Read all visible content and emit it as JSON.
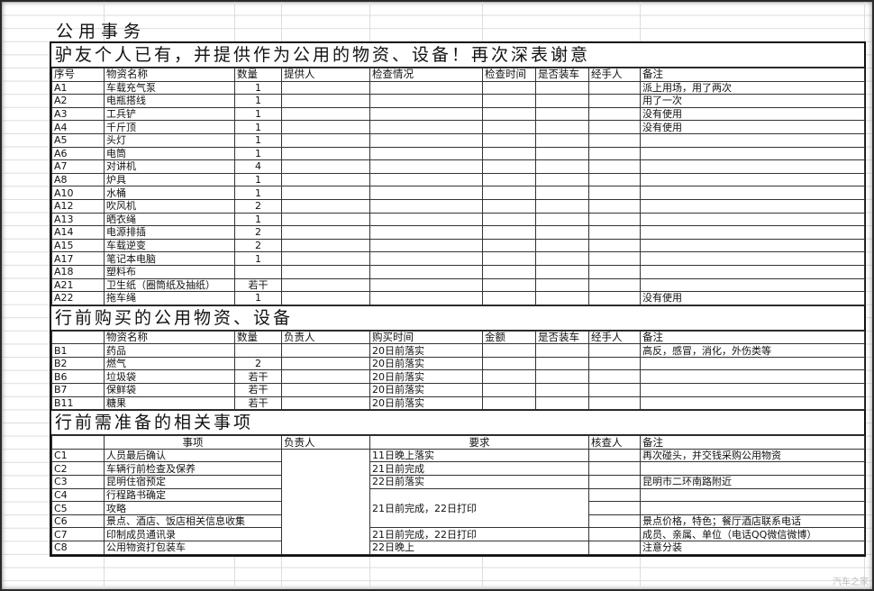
{
  "sheet_title": "公用事务",
  "section_a": {
    "banner": "驴友个人已有，并提供作为公用的物资、设备！再次深表谢意",
    "headers": [
      "序号",
      "物资名称",
      "数量",
      "提供人",
      "检查情况",
      "检查时间",
      "是否装车",
      "经手人",
      "备注"
    ],
    "rows": [
      [
        "A1",
        "车载充气泵",
        "1",
        "",
        "",
        "",
        "",
        "",
        "派上用场，用了两次"
      ],
      [
        "A2",
        "电瓶搭线",
        "1",
        "",
        "",
        "",
        "",
        "",
        "用了一次"
      ],
      [
        "A3",
        "工兵铲",
        "1",
        "",
        "",
        "",
        "",
        "",
        "没有使用"
      ],
      [
        "A4",
        "千斤顶",
        "1",
        "",
        "",
        "",
        "",
        "",
        "没有使用"
      ],
      [
        "A5",
        "头灯",
        "1",
        "",
        "",
        "",
        "",
        "",
        ""
      ],
      [
        "A6",
        "电筒",
        "1",
        "",
        "",
        "",
        "",
        "",
        ""
      ],
      [
        "A7",
        "对讲机",
        "4",
        "",
        "",
        "",
        "",
        "",
        ""
      ],
      [
        "A8",
        "炉具",
        "1",
        "",
        "",
        "",
        "",
        "",
        ""
      ],
      [
        "A10",
        "水桶",
        "1",
        "",
        "",
        "",
        "",
        "",
        ""
      ],
      [
        "A12",
        "吹风机",
        "2",
        "",
        "",
        "",
        "",
        "",
        ""
      ],
      [
        "A13",
        "晒衣绳",
        "1",
        "",
        "",
        "",
        "",
        "",
        ""
      ],
      [
        "A14",
        "电源排插",
        "2",
        "",
        "",
        "",
        "",
        "",
        ""
      ],
      [
        "A15",
        "车载逆变",
        "2",
        "",
        "",
        "",
        "",
        "",
        ""
      ],
      [
        "A17",
        "笔记本电脑",
        "1",
        "",
        "",
        "",
        "",
        "",
        ""
      ],
      [
        "A18",
        "塑料布",
        "",
        "",
        "",
        "",
        "",
        "",
        ""
      ],
      [
        "A21",
        "卫生纸（圈筒纸及抽纸）",
        "若干",
        "",
        "",
        "",
        "",
        "",
        ""
      ],
      [
        "A22",
        "拖车绳",
        "1",
        "",
        "",
        "",
        "",
        "",
        "没有使用"
      ]
    ]
  },
  "section_b": {
    "banner": "行前购买的公用物资、设备",
    "headers": [
      "",
      "物资名称",
      "数量",
      "负责人",
      "购买时间",
      "金额",
      "是否装车",
      "经手人",
      "备注"
    ],
    "rows": [
      [
        "B1",
        "药品",
        "",
        "",
        "20日前落实",
        "",
        "",
        "",
        "高反，感冒，消化，外伤类等"
      ],
      [
        "B2",
        "燃气",
        "2",
        "",
        "20日前落实",
        "",
        "",
        "",
        ""
      ],
      [
        "B6",
        "垃圾袋",
        "若干",
        "",
        "20日前落实",
        "",
        "",
        "",
        ""
      ],
      [
        "B7",
        "保鲜袋",
        "若干",
        "",
        "20日前落实",
        "",
        "",
        "",
        ""
      ],
      [
        "B11",
        "糖果",
        "若干",
        "",
        "20日前落实",
        "",
        "",
        "",
        ""
      ]
    ]
  },
  "section_c": {
    "banner": "行前需准备的相关事项",
    "headers": [
      "",
      "事项",
      "负责人",
      "要求",
      "核查人",
      "备注"
    ],
    "rows": [
      [
        "C1",
        "人员最后确认",
        "",
        "11日晚上落实",
        "",
        "再次碰头，并交钱采购公用物资"
      ],
      [
        "C2",
        "车辆行前检查及保养",
        "",
        "21日前完成",
        "",
        ""
      ],
      [
        "C3",
        "昆明住宿预定",
        "",
        "22日前落实",
        "",
        "昆明市二环南路附近"
      ],
      [
        "C4",
        "行程路书确定",
        "",
        "21日前完成，22日打印",
        "",
        ""
      ],
      [
        "C5",
        "攻略",
        "",
        "",
        "",
        ""
      ],
      [
        "C6",
        "景点、酒店、饭店相关信息收集",
        "",
        "",
        "",
        "景点价格，特色；餐厅酒店联系电话"
      ],
      [
        "C7",
        "印制成员通讯录",
        "",
        "21日前完成，22日打印",
        "",
        "成员、亲属、单位（电话QQ微信微博）"
      ],
      [
        "C8",
        "公用物资打包装车",
        "",
        "22日晚上",
        "",
        "注意分装"
      ]
    ]
  },
  "watermark": "汽车之家"
}
